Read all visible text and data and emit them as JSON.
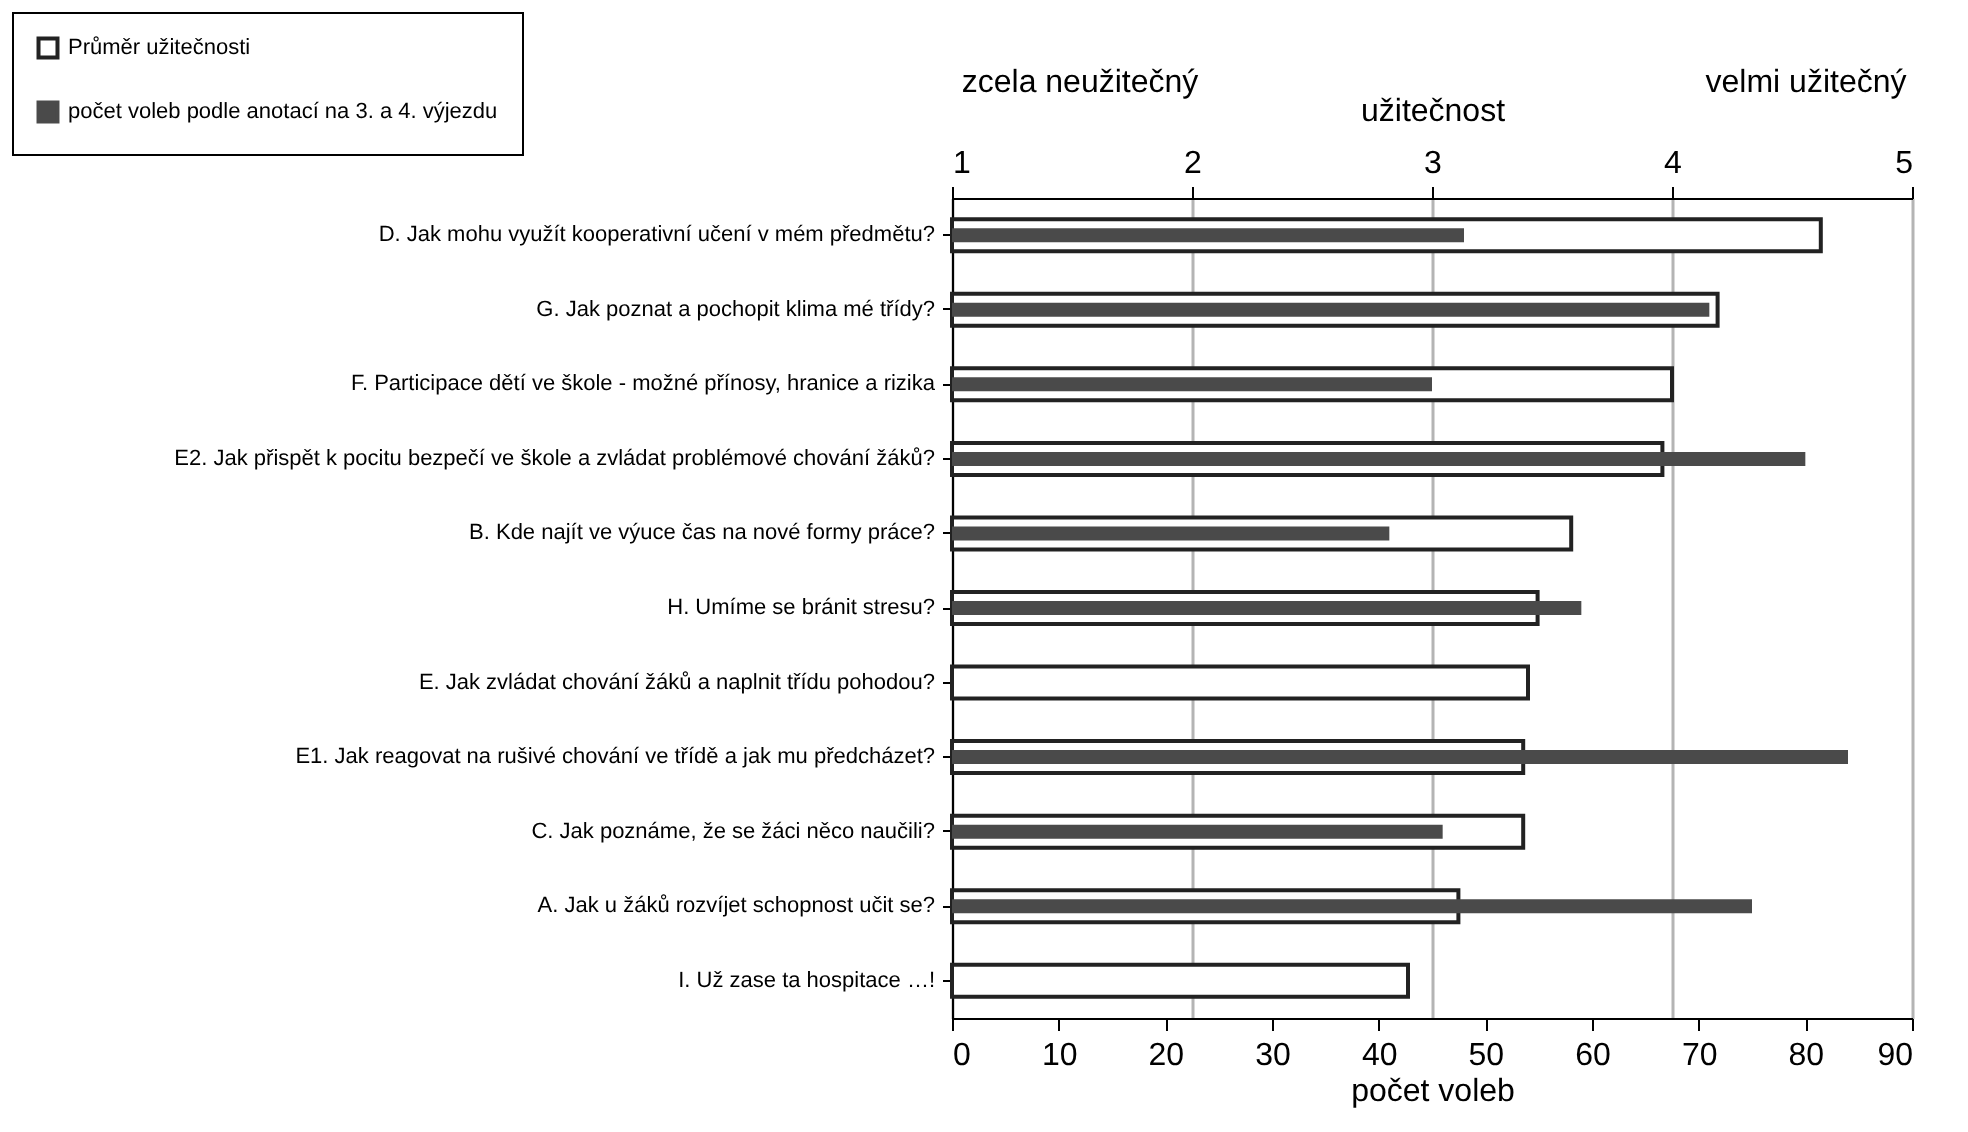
{
  "chart_data": {
    "type": "bar",
    "orientation": "horizontal",
    "categories": [
      "D. Jak mohu využít kooperativní učení v mém předmětu?",
      "G. Jak poznat a pochopit klima mé třídy?",
      "F. Participace dětí ve škole - možné přínosy, hranice a rizika",
      "E2. Jak přispět k pocitu bezpečí ve škole a zvládat problémové chování žáků?",
      "B. Kde najít ve výuce čas na nové formy práce?",
      "H. Umíme se bránit stresu?",
      "E. Jak zvládat chování žáků a naplnit třídu pohodou?",
      "E1. Jak reagovat na rušivé chování ve třídě a jak mu předcházet?",
      "C. Jak poznáme, že se žáci něco naučili?",
      "A. Jak u žáků rozvíjet schopnost učit se?",
      "I. Už zase ta hospitace …!"
    ],
    "series": [
      {
        "name": "Průměr užitečnosti",
        "color": "#ffffff",
        "axis": "x2",
        "values": [
          4.62,
          4.19,
          4.0,
          3.96,
          3.58,
          3.44,
          3.4,
          3.38,
          3.38,
          3.11,
          2.9
        ]
      },
      {
        "name": "počet voleb podle anotací na 3. a 4. výjezdu",
        "color": "#4a4a4a",
        "values": [
          48,
          71,
          45,
          80,
          41,
          59,
          null,
          84,
          46,
          75,
          null
        ]
      }
    ],
    "xlim": [
      0,
      90
    ],
    "xticks": [
      0,
      10,
      20,
      30,
      40,
      50,
      60,
      70,
      80,
      90
    ],
    "xlabel": "počet voleb",
    "x2lim": [
      1,
      5
    ],
    "x2ticks": [
      1,
      2,
      3,
      4,
      5
    ],
    "x2label": "užitečnost",
    "annotations": [
      "zcela  neužitečný",
      "velmi užitečný"
    ],
    "grid": "x2",
    "legend": "top left"
  }
}
